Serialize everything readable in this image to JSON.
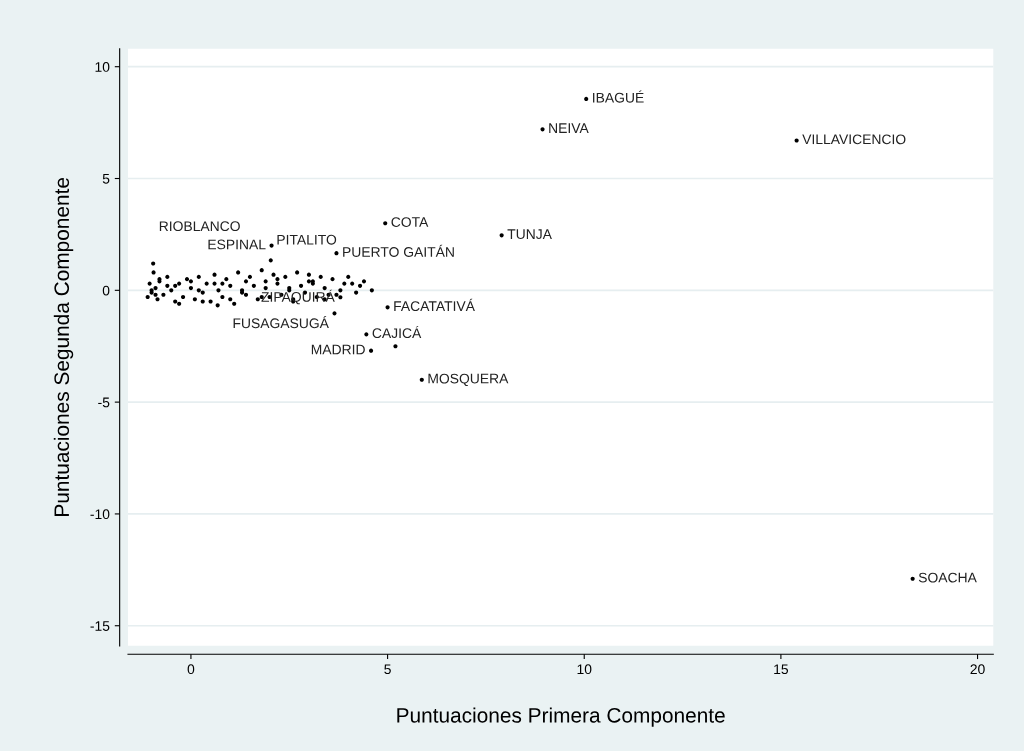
{
  "chart_data": {
    "type": "scatter",
    "xlabel": "Puntuaciones Primera Componente",
    "ylabel": "Puntuaciones Segunda Componente",
    "xlim": [
      -1.6,
      20.4
    ],
    "ylim": [
      -15.9,
      10.8
    ],
    "xticks": [
      0,
      5,
      10,
      15,
      20
    ],
    "yticks": [
      -15,
      -10,
      -5,
      0,
      5,
      10
    ],
    "grid": "y",
    "marker": "circle",
    "series": [
      {
        "color": "#000000",
        "x": [
          10.05,
          8.94,
          15.4,
          4.94,
          7.9,
          2.05,
          3.7,
          2.03,
          -0.96,
          18.35,
          5.87,
          4.58,
          4.46,
          5.0,
          3.65,
          3.8,
          5.2,
          0.68,
          -1.1,
          -1.05,
          -1.0,
          -0.95,
          -0.9,
          -0.85,
          -0.8,
          -0.7,
          -0.6,
          -0.5,
          -0.4,
          -0.3,
          -0.2,
          -0.1,
          0.0,
          0.1,
          0.2,
          0.3,
          0.4,
          0.5,
          0.6,
          0.7,
          0.8,
          0.9,
          1.0,
          1.1,
          1.2,
          1.3,
          1.4,
          1.5,
          1.6,
          1.7,
          1.8,
          1.9,
          2.0,
          2.1,
          2.2,
          2.3,
          2.4,
          2.5,
          2.6,
          2.7,
          2.8,
          2.9,
          3.0,
          3.1,
          3.2,
          3.3,
          3.4,
          3.5,
          3.6,
          3.8,
          4.0,
          4.2,
          4.4,
          4.6,
          -1.0,
          -0.9,
          -0.6,
          -0.3,
          0.0,
          0.3,
          0.6,
          1.0,
          1.4,
          1.8,
          2.2,
          2.6,
          3.0,
          3.4,
          3.9,
          4.3,
          -0.8,
          -0.4,
          0.2,
          0.8,
          1.3,
          1.9,
          2.5,
          3.1,
          3.7,
          4.1
        ],
        "values": [
          8.56,
          7.2,
          6.7,
          3.0,
          2.46,
          2.0,
          1.66,
          1.34,
          1.2,
          -12.9,
          -4.0,
          -2.7,
          -1.97,
          -0.76,
          -1.03,
          -0.31,
          -2.5,
          -0.67,
          -0.3,
          0.3,
          -0.1,
          0.8,
          0.1,
          -0.4,
          0.4,
          -0.2,
          0.6,
          0.0,
          -0.5,
          0.3,
          -0.3,
          0.5,
          0.1,
          -0.4,
          0.6,
          -0.1,
          0.3,
          -0.5,
          0.7,
          0.0,
          -0.3,
          0.5,
          0.2,
          -0.6,
          0.8,
          0.0,
          -0.2,
          0.6,
          0.2,
          -0.4,
          0.9,
          0.1,
          -0.3,
          0.7,
          0.3,
          -0.2,
          0.6,
          0.0,
          -0.4,
          0.8,
          0.2,
          -0.1,
          0.7,
          0.3,
          -0.3,
          0.6,
          0.1,
          -0.2,
          0.5,
          0.0,
          0.6,
          -0.1,
          0.4,
          0.0,
          0.0,
          -0.2,
          0.2,
          -0.6,
          0.4,
          -0.5,
          0.3,
          -0.4,
          0.4,
          -0.3,
          0.5,
          -0.5,
          0.4,
          -0.4,
          0.3,
          0.2,
          0.5,
          0.2,
          0.0,
          0.3,
          -0.1,
          0.4,
          0.1,
          0.4,
          -0.2,
          0.3
        ]
      }
    ],
    "annotations": [
      {
        "text": "IBAGUÉ",
        "x": 10.05,
        "y": 8.56
      },
      {
        "text": "NEIVA",
        "x": 8.94,
        "y": 7.2
      },
      {
        "text": "VILLAVICENCIO",
        "x": 15.4,
        "y": 6.7
      },
      {
        "text": "COTA",
        "x": 4.94,
        "y": 3.0
      },
      {
        "text": "TUNJA",
        "x": 7.9,
        "y": 2.46
      },
      {
        "text": "ESPINAL",
        "x": 2.05,
        "y": 2.0
      },
      {
        "text": "PUERTO GAITÁN",
        "x": 3.7,
        "y": 1.66
      },
      {
        "text": "PITALITO",
        "x": 2.03,
        "y": 1.34
      },
      {
        "text": "RIOBLANCO",
        "x": -0.96,
        "y": 1.2
      },
      {
        "text": "SOACHA",
        "x": 18.35,
        "y": -12.9
      },
      {
        "text": "MOSQUERA",
        "x": 5.87,
        "y": -4.0
      },
      {
        "text": "MADRID",
        "x": 4.58,
        "y": -2.7
      },
      {
        "text": "CAJICÁ",
        "x": 4.46,
        "y": -1.97
      },
      {
        "text": "FACATATIVÁ",
        "x": 5.0,
        "y": -0.76
      },
      {
        "text": "FUSAGASUGÁ",
        "x": 3.65,
        "y": -1.03
      },
      {
        "text": "ZIPAQUIRÁ",
        "x": 3.8,
        "y": -0.31
      }
    ]
  }
}
